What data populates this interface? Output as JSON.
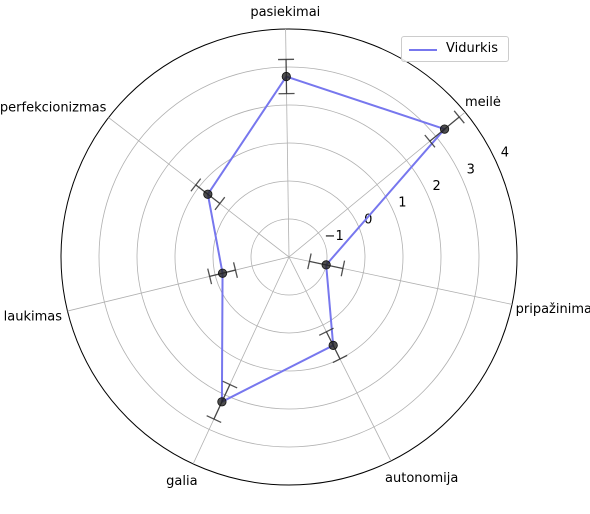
{
  "chart_data": {
    "type": "radar",
    "categories": [
      "pripažinimas",
      "meilė",
      "pasiekimai",
      "perfekcionizmas",
      "atlygio laukimas",
      "galia",
      "autonomija"
    ],
    "series": [
      {
        "name": "Vidurkis",
        "color": "#7777ee",
        "values": [
          -1.0,
          3.3,
          2.75,
          0.7,
          -0.2,
          2.2,
          0.6
        ],
        "errors": [
          0.45,
          0.5,
          0.45,
          0.4,
          0.35,
          0.5,
          0.4
        ]
      }
    ],
    "radial_ticks": [
      -1,
      0,
      1,
      2,
      3,
      4
    ],
    "radial_tick_labels": [
      "−1",
      "0",
      "1",
      "2",
      "3",
      "4"
    ],
    "rlim": [
      -2,
      4
    ],
    "grid": true,
    "legend_position": "top-right"
  }
}
